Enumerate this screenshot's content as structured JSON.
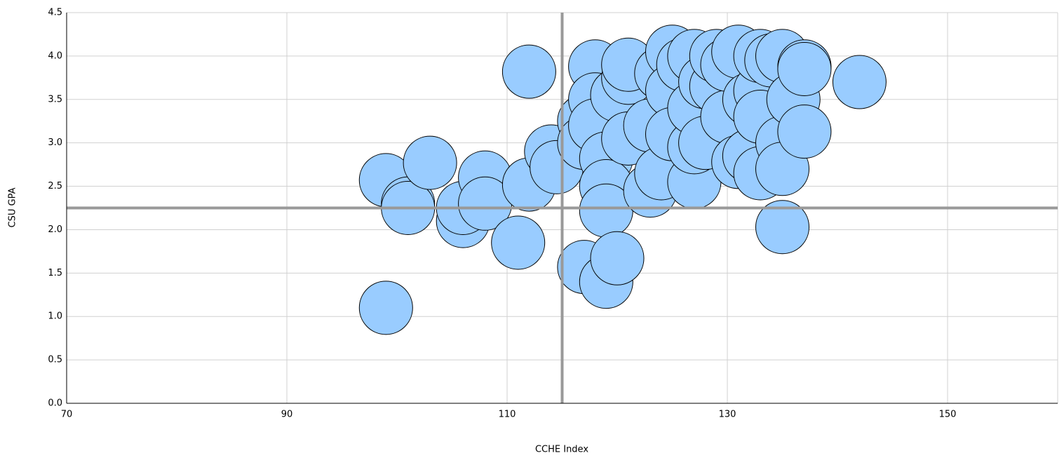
{
  "chart_data": {
    "type": "scatter",
    "x_label": "CCHE Index",
    "y_label": "CSU GPA",
    "xlim": [
      70,
      160
    ],
    "ylim": [
      0,
      4.5
    ],
    "xticks": [
      70,
      90,
      110,
      130,
      150
    ],
    "yticks": [
      {
        "value": 0,
        "label": "0.0"
      },
      {
        "value": 0.5,
        "label": "0.5"
      },
      {
        "value": 1,
        "label": "1.0"
      },
      {
        "value": 1.5,
        "label": "1.5"
      },
      {
        "value": 2,
        "label": "2.0"
      },
      {
        "value": 2.5,
        "label": "2.5"
      },
      {
        "value": 3,
        "label": "3.0"
      },
      {
        "value": 3.5,
        "label": "3.5"
      },
      {
        "value": 4,
        "label": "4.0"
      },
      {
        "value": 4.5,
        "label": "4.5"
      }
    ],
    "grid": true,
    "color": "#99ccff",
    "ref_lines": {
      "x": 115,
      "y": 2.25,
      "color": "#999999"
    },
    "x": [
      99,
      99,
      101,
      101,
      103,
      106,
      106,
      108,
      108,
      111,
      112,
      112,
      114,
      114.5,
      117,
      117,
      117,
      118,
      118,
      118,
      119,
      119,
      119,
      119,
      120,
      120,
      121,
      121,
      121,
      123,
      123,
      124,
      124,
      125,
      125,
      125,
      126,
      127,
      127,
      127,
      127,
      128,
      128,
      129,
      129,
      130,
      130,
      131,
      131,
      132,
      132,
      133,
      133,
      133,
      133,
      134,
      135,
      135,
      135,
      135,
      136,
      137,
      137,
      137,
      142
    ],
    "values": [
      1.1,
      2.57,
      2.3,
      2.25,
      2.77,
      2.1,
      2.25,
      2.6,
      2.3,
      1.85,
      3.82,
      2.52,
      2.9,
      2.72,
      3.25,
      3.0,
      1.57,
      3.88,
      3.5,
      3.2,
      2.82,
      2.5,
      2.22,
      1.4,
      1.67,
      3.55,
      3.05,
      3.75,
      3.9,
      2.45,
      3.2,
      2.65,
      3.8,
      4.05,
      3.6,
      3.1,
      3.9,
      2.55,
      2.95,
      3.4,
      4.0,
      3.7,
      3.0,
      3.65,
      4.0,
      3.3,
      3.9,
      2.78,
      4.05,
      3.5,
      2.85,
      2.65,
      3.6,
      3.3,
      4.0,
      3.95,
      2.03,
      3.0,
      2.7,
      4.0,
      3.5,
      3.13,
      3.88,
      3.85,
      3.7
    ]
  }
}
